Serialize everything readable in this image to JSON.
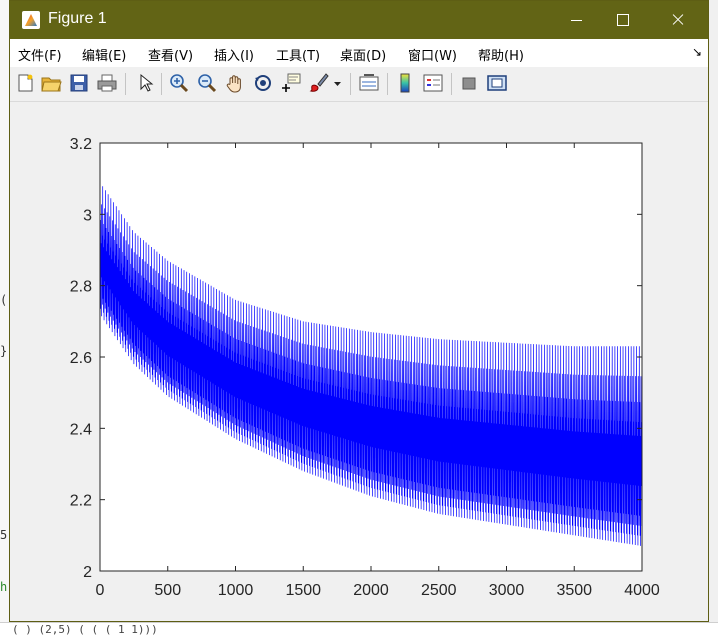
{
  "window": {
    "title": "Figure 1",
    "buttons": {
      "minimize": "minimize",
      "maximize": "maximize",
      "close": "close"
    }
  },
  "menu": {
    "items": [
      "文件(F)",
      "编辑(E)",
      "查看(V)",
      "插入(I)",
      "工具(T)",
      "桌面(D)",
      "窗口(W)",
      "帮助(H)"
    ],
    "overflow": "↘"
  },
  "toolbar": {
    "buttons": [
      "new-figure-icon",
      "open-file-icon",
      "save-icon",
      "print-icon",
      "pointer-icon",
      "zoom-in-icon",
      "zoom-out-icon",
      "pan-hand-icon",
      "rotate-3d-icon",
      "data-cursor-icon",
      "brush-icon",
      "brush-dropdown-icon",
      "link-plot-icon",
      "colorbar-icon",
      "legend-icon",
      "hide-plot-tools-icon",
      "show-plot-tools-icon"
    ]
  },
  "background": {
    "bottom_code": "( ) (2,5) (  ( ( 1 1)))",
    "left_code": [
      "(",
      "}",
      "5",
      "h"
    ]
  },
  "chart_data": {
    "type": "line",
    "title": "",
    "xlabel": "",
    "ylabel": "",
    "xlim": [
      0,
      4000
    ],
    "ylim": [
      2,
      3.2
    ],
    "xticks": [
      0,
      500,
      1000,
      1500,
      2000,
      2500,
      3000,
      3500,
      4000
    ],
    "yticks": [
      2,
      2.2,
      2.4,
      2.6,
      2.8,
      3,
      3.2
    ],
    "grid": false,
    "series_color": "#0000ff",
    "oscillation_period": 20,
    "envelope": {
      "x": [
        0,
        250,
        500,
        1000,
        1500,
        2000,
        2500,
        3000,
        3500,
        4000
      ],
      "upper": [
        3.09,
        2.95,
        2.87,
        2.76,
        2.7,
        2.67,
        2.65,
        2.64,
        2.63,
        2.63
      ],
      "lower": [
        2.72,
        2.58,
        2.49,
        2.37,
        2.28,
        2.21,
        2.16,
        2.13,
        2.1,
        2.07
      ]
    }
  }
}
